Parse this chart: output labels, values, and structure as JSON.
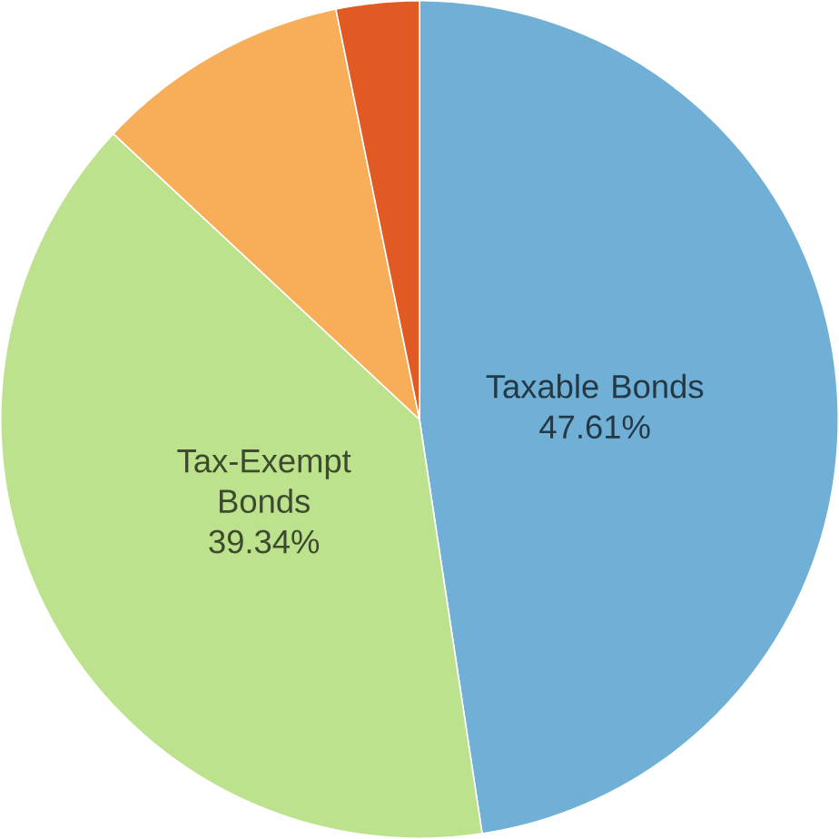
{
  "chart_data": {
    "type": "pie",
    "categories": [
      "Taxable Bonds",
      "Tax-Exempt Bonds",
      null,
      null
    ],
    "values": [
      47.61,
      39.34,
      9.85,
      3.2
    ],
    "value_labels": [
      "47.61%",
      "39.34%",
      null,
      null
    ],
    "colors": [
      "#70afd6",
      "#bde28e",
      "#f8ad58",
      "#e25a23"
    ]
  }
}
